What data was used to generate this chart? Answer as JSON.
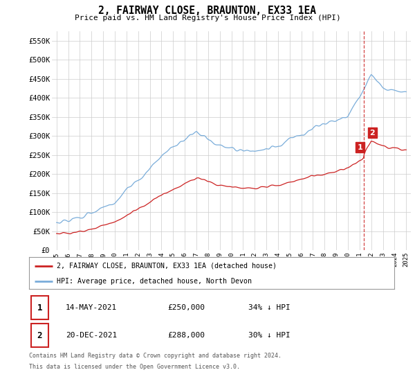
{
  "title": "2, FAIRWAY CLOSE, BRAUNTON, EX33 1EA",
  "subtitle": "Price paid vs. HM Land Registry's House Price Index (HPI)",
  "ylim": [
    0,
    575000
  ],
  "yticks": [
    0,
    50000,
    100000,
    150000,
    200000,
    250000,
    300000,
    350000,
    400000,
    450000,
    500000,
    550000
  ],
  "ytick_labels": [
    "£0",
    "£50K",
    "£100K",
    "£150K",
    "£200K",
    "£250K",
    "£300K",
    "£350K",
    "£400K",
    "£450K",
    "£500K",
    "£550K"
  ],
  "background_color": "#ffffff",
  "grid_color": "#cccccc",
  "hpi_color": "#7aadda",
  "price_color": "#cc2222",
  "vline_color": "#cc2222",
  "legend_red_label": "2, FAIRWAY CLOSE, BRAUNTON, EX33 1EA (detached house)",
  "legend_blue_label": "HPI: Average price, detached house, North Devon",
  "transactions": [
    {
      "id": 1,
      "date": "14-MAY-2021",
      "price": "250,000",
      "pct": "34%",
      "dir": "↓"
    },
    {
      "id": 2,
      "date": "20-DEC-2021",
      "price": "288,000",
      "pct": "30%",
      "dir": "↓"
    }
  ],
  "footnote1": "Contains HM Land Registry data © Crown copyright and database right 2024.",
  "footnote2": "This data is licensed under the Open Government Licence v3.0.",
  "vline_x": 2021.37
}
